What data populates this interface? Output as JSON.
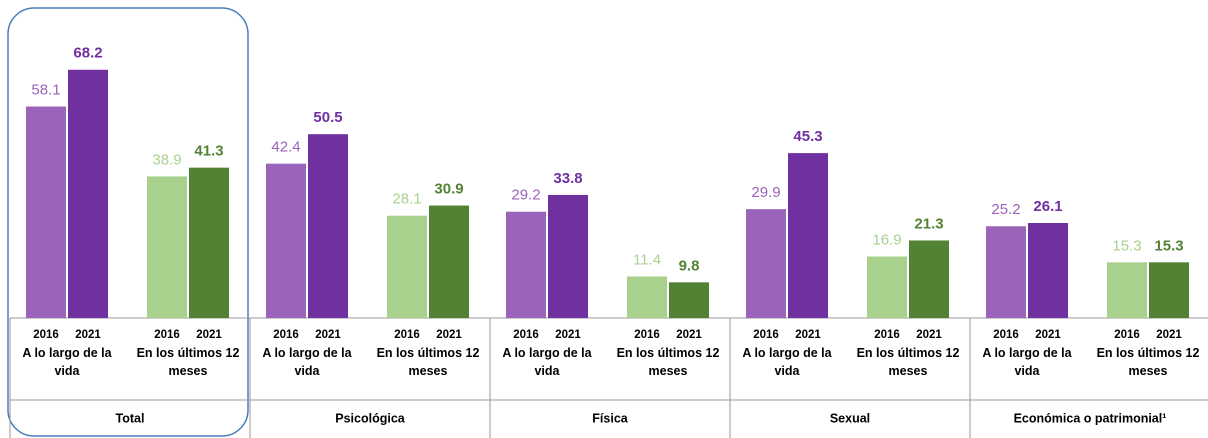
{
  "chart_data": {
    "type": "grouped_bar",
    "years": [
      "2016",
      "2021"
    ],
    "period_colors": [
      [
        "#9b63b9",
        "#7030a0"
      ],
      [
        "#a9d18e",
        "#548235"
      ]
    ],
    "groups": [
      {
        "name": "Total",
        "periods": [
          {
            "name": "A lo largo de la vida",
            "values": [
              58.1,
              68.2
            ]
          },
          {
            "name": "En los últimos 12 meses",
            "values": [
              38.9,
              41.3
            ]
          }
        ]
      },
      {
        "name": "Psicológica",
        "periods": [
          {
            "name": "A lo largo de la vida",
            "values": [
              42.4,
              50.5
            ]
          },
          {
            "name": "En los últimos 12 meses",
            "values": [
              28.1,
              30.9
            ]
          }
        ]
      },
      {
        "name": "Física",
        "periods": [
          {
            "name": "A lo largo de la vida",
            "values": [
              29.2,
              33.8
            ]
          },
          {
            "name": "En los últimos 12 meses",
            "values": [
              11.4,
              9.8
            ]
          }
        ]
      },
      {
        "name": "Sexual",
        "periods": [
          {
            "name": "A lo largo de la vida",
            "values": [
              29.9,
              45.3
            ]
          },
          {
            "name": "En los últimos 12 meses",
            "values": [
              16.9,
              21.3
            ]
          }
        ]
      },
      {
        "name": "Económica o patrimonial¹",
        "periods": [
          {
            "name": "A lo largo de la vida",
            "values": [
              25.2,
              26.1
            ]
          },
          {
            "name": "En los últimos 12 meses",
            "values": [
              15.3,
              15.3
            ]
          }
        ]
      }
    ]
  }
}
